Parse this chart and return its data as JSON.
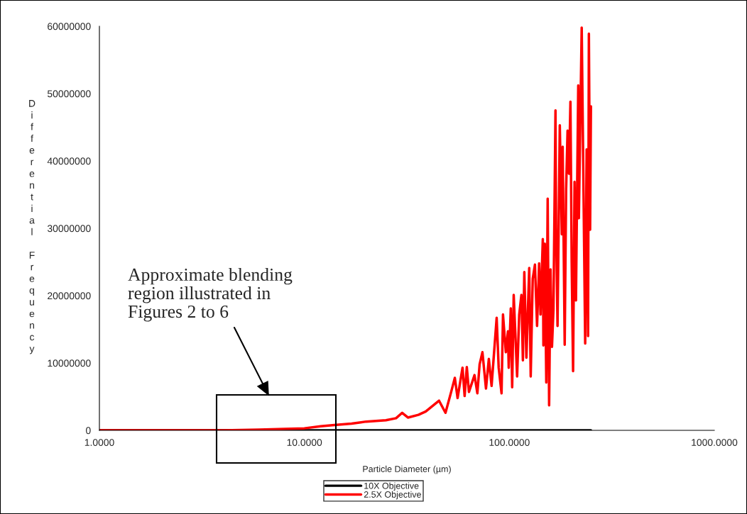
{
  "chart_data": {
    "type": "line",
    "xlabel": "Particle Diameter (µm)",
    "ylabel": "Differential Frequency",
    "log": "x",
    "xlim": [
      1,
      1000
    ],
    "xticks": [
      {
        "value": 1,
        "label": "1.0000"
      },
      {
        "value": 10,
        "label": "10.0000"
      },
      {
        "value": 100,
        "label": "100.0000"
      },
      {
        "value": 1000,
        "label": "1000.0000"
      }
    ],
    "ylim": [
      0,
      60000000
    ],
    "yticks": [
      0,
      10000000,
      20000000,
      30000000,
      40000000,
      50000000,
      60000000
    ],
    "grid": false,
    "legend": "bottom",
    "marker": "none",
    "line_style": "solid",
    "series": [
      {
        "name": "10X Objective",
        "color": "#000000",
        "x": [
          1,
          250
        ],
        "values": [
          0,
          0
        ]
      },
      {
        "name": "2.5X Objective",
        "color": "#ff0000",
        "x": [
          1,
          2,
          4,
          6,
          8,
          10,
          12,
          14,
          17,
          20,
          25,
          28,
          30,
          32,
          36,
          39.1,
          45.4,
          48.8,
          52.0,
          54.2,
          55.9,
          59.1,
          60.5,
          62.0,
          63.5,
          67.6,
          69.8,
          71.6,
          73.9,
          76.9,
          79.4,
          81.9,
          86.7,
          88.7,
          91.6,
          93.1,
          96.1,
          98.4,
          99.3,
          101.6,
          103.2,
          105.0,
          109.1,
          111.7,
          114.5,
          116.4,
          118.3,
          121.1,
          125.0,
          127.1,
          130.0,
          133.3,
          136.5,
          139.7,
          141.9,
          145.6,
          146.6,
          148.9,
          151.4,
          153.8,
          156.3,
          158.8,
          161.4,
          164.1,
          167.9,
          169.0,
          171.8,
          176.2,
          180.3,
          182.0,
          186.2,
          189.2,
          192.3,
          195.4,
          198.6,
          201.4,
          204.6,
          208.0,
          211.3,
          216.8,
          218.3,
          225.4,
          234.4,
          238.2,
          242.1,
          244.3,
          247.7,
          250.0
        ],
        "values": [
          0,
          0,
          0,
          100000,
          200000,
          300000,
          600000,
          800000,
          1000000,
          1300000,
          1500000,
          1800000,
          2600000,
          1900000,
          2300000,
          2800000,
          4400000,
          2600000,
          5700000,
          7800000,
          4800000,
          9300000,
          5100000,
          9400000,
          5700000,
          8200000,
          5500000,
          9800000,
          11600000,
          6200000,
          10600000,
          6600000,
          16700000,
          9300000,
          5500000,
          17200000,
          11600000,
          14700000,
          9300000,
          18100000,
          6400000,
          20100000,
          8000000,
          17200000,
          20100000,
          10400000,
          23500000,
          10800000,
          24100000,
          8000000,
          22500000,
          24600000,
          15500000,
          24800000,
          17200000,
          28400000,
          12600000,
          27700000,
          7100000,
          34400000,
          3700000,
          23900000,
          12400000,
          17900000,
          47500000,
          30200000,
          15500000,
          45300000,
          29100000,
          42100000,
          12700000,
          35800000,
          44500000,
          38100000,
          48800000,
          25000000,
          8800000,
          36900000,
          19300000,
          51200000,
          31500000,
          59800000,
          12900000,
          41700000,
          14000000,
          58900000,
          29800000,
          48100000
        ]
      }
    ],
    "annotations": [
      "Approximate blending\nregion illustrated in\nFigures 2 to 6"
    ]
  }
}
